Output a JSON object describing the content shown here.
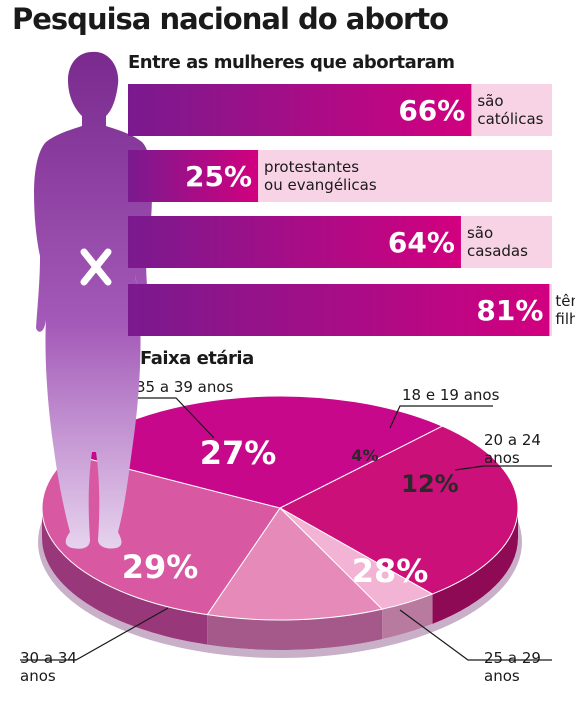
{
  "title": "Pesquisa nacional do aborto",
  "colors": {
    "bar_fill_start": "#d2007f",
    "bar_fill_end": "#7a1a8e",
    "bar_track": "#f8d3e6",
    "pie_main": "#cc1079"
  },
  "chart_data": [
    {
      "type": "bar",
      "title": "Entre as mulheres que abortaram",
      "ylim": [
        0,
        100
      ],
      "bars": [
        {
          "value": 66,
          "label": "66%",
          "text1": "são",
          "text2": "católicas"
        },
        {
          "value": 25,
          "label": "25%",
          "text1": "protestantes",
          "text2": "ou evangélicas"
        },
        {
          "value": 64,
          "label": "64%",
          "text1": "são",
          "text2": "casadas"
        },
        {
          "value": 81,
          "label": "81%",
          "text1": "têm",
          "text2": "filhos"
        }
      ]
    },
    {
      "type": "pie",
      "title": "Faixa etária",
      "slices": [
        {
          "label": "35 a 39 anos",
          "label1": "35 a 39 anos",
          "label2": "",
          "value": 27,
          "value_label": "27%",
          "color": "#cc1079",
          "side": "#8f0a55"
        },
        {
          "label": "18 e 19 anos",
          "label1": "18 e 19 anos",
          "label2": "",
          "value": 4,
          "value_label": "4%",
          "color": "#f2b3d4",
          "side": "#b97aa0"
        },
        {
          "label": "20 a 24 anos",
          "label1": "20 a 24",
          "label2": "anos",
          "value": 12,
          "value_label": "12%",
          "color": "#e58ab9",
          "side": "#a5588a"
        },
        {
          "label": "25 a 29 anos",
          "label1": "25 a 29",
          "label2": "anos",
          "value": 28,
          "value_label": "28%",
          "color": "#d859a2",
          "side": "#98387a"
        },
        {
          "label": "30 a 34 anos",
          "label1": "30 a 34",
          "label2": "anos",
          "value": 29,
          "value_label": "29%",
          "color": "#c8088a",
          "side": "#8a0660"
        }
      ]
    }
  ]
}
